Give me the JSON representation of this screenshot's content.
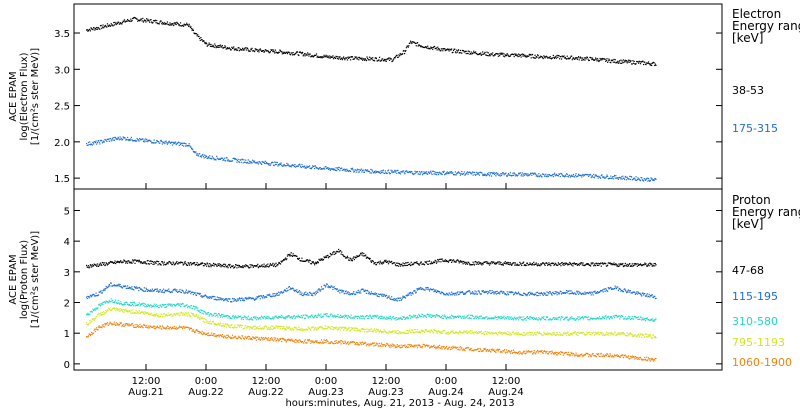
{
  "chart_data": [
    {
      "type": "scatter",
      "panel": "electron",
      "ylabel_lines": [
        "ACE EPAM",
        "log(Electron Flux)",
        "[1/(cm²s ster MeV)]"
      ],
      "ylim": [
        1.35,
        3.9
      ],
      "yticks": [
        1.5,
        2.0,
        2.5,
        3.0,
        3.5
      ],
      "legend_title_lines": [
        "Electron",
        "Energy ranges",
        "[keV]"
      ],
      "series": [
        {
          "name": "38-53",
          "color": "#000000",
          "points": [
            [
              0.0,
              3.55
            ],
            [
              0.1,
              3.58
            ],
            [
              0.2,
              3.62
            ],
            [
              0.3,
              3.66
            ],
            [
              0.4,
              3.7
            ],
            [
              0.5,
              3.68
            ],
            [
              0.6,
              3.66
            ],
            [
              0.7,
              3.64
            ],
            [
              0.85,
              3.62
            ],
            [
              0.9,
              3.5
            ],
            [
              1.0,
              3.35
            ],
            [
              1.2,
              3.3
            ],
            [
              1.4,
              3.27
            ],
            [
              1.6,
              3.25
            ],
            [
              1.8,
              3.22
            ],
            [
              2.0,
              3.18
            ],
            [
              2.2,
              3.16
            ],
            [
              2.4,
              3.15
            ],
            [
              2.55,
              3.14
            ],
            [
              2.65,
              3.25
            ],
            [
              2.7,
              3.38
            ],
            [
              2.8,
              3.33
            ],
            [
              3.0,
              3.27
            ],
            [
              3.2,
              3.24
            ],
            [
              3.4,
              3.21
            ],
            [
              3.6,
              3.2
            ],
            [
              3.8,
              3.18
            ],
            [
              4.0,
              3.17
            ],
            [
              4.2,
              3.15
            ],
            [
              4.4,
              3.12
            ],
            [
              4.6,
              3.1
            ],
            [
              4.75,
              3.08
            ]
          ]
        },
        {
          "name": "175-315",
          "color": "#1f6fd0",
          "points": [
            [
              0.0,
              1.98
            ],
            [
              0.1,
              2.0
            ],
            [
              0.2,
              2.04
            ],
            [
              0.3,
              2.06
            ],
            [
              0.4,
              2.04
            ],
            [
              0.5,
              2.02
            ],
            [
              0.6,
              2.01
            ],
            [
              0.7,
              1.99
            ],
            [
              0.85,
              1.97
            ],
            [
              0.9,
              1.85
            ],
            [
              1.0,
              1.8
            ],
            [
              1.2,
              1.76
            ],
            [
              1.4,
              1.73
            ],
            [
              1.6,
              1.7
            ],
            [
              1.8,
              1.67
            ],
            [
              2.0,
              1.64
            ],
            [
              2.2,
              1.62
            ],
            [
              2.4,
              1.6
            ],
            [
              2.6,
              1.59
            ],
            [
              2.8,
              1.58
            ],
            [
              3.0,
              1.58
            ],
            [
              3.2,
              1.57
            ],
            [
              3.4,
              1.56
            ],
            [
              3.6,
              1.56
            ],
            [
              3.8,
              1.55
            ],
            [
              4.0,
              1.55
            ],
            [
              4.2,
              1.54
            ],
            [
              4.4,
              1.52
            ],
            [
              4.6,
              1.5
            ],
            [
              4.75,
              1.48
            ]
          ]
        }
      ]
    },
    {
      "type": "scatter",
      "panel": "proton",
      "ylabel_lines": [
        "ACE EPAM",
        "log(Proton Flux)",
        "[1/(cm²s ster MeV)]"
      ],
      "ylim": [
        -0.2,
        5.7
      ],
      "yticks": [
        0,
        1,
        2,
        3,
        4,
        5
      ],
      "legend_title_lines": [
        "Proton",
        "Energy ranges",
        "[keV]"
      ],
      "series": [
        {
          "name": "47-68",
          "color": "#000000",
          "points": [
            [
              0.0,
              3.2
            ],
            [
              0.1,
              3.25
            ],
            [
              0.2,
              3.3
            ],
            [
              0.3,
              3.35
            ],
            [
              0.45,
              3.35
            ],
            [
              0.6,
              3.3
            ],
            [
              0.8,
              3.3
            ],
            [
              1.0,
              3.25
            ],
            [
              1.2,
              3.2
            ],
            [
              1.4,
              3.2
            ],
            [
              1.6,
              3.25
            ],
            [
              1.7,
              3.6
            ],
            [
              1.8,
              3.4
            ],
            [
              1.9,
              3.3
            ],
            [
              2.0,
              3.5
            ],
            [
              2.1,
              3.7
            ],
            [
              2.2,
              3.4
            ],
            [
              2.3,
              3.6
            ],
            [
              2.4,
              3.3
            ],
            [
              2.5,
              3.35
            ],
            [
              2.6,
              3.25
            ],
            [
              2.8,
              3.3
            ],
            [
              3.0,
              3.4
            ],
            [
              3.2,
              3.3
            ],
            [
              3.4,
              3.3
            ],
            [
              3.6,
              3.28
            ],
            [
              3.8,
              3.27
            ],
            [
              4.0,
              3.27
            ],
            [
              4.2,
              3.26
            ],
            [
              4.4,
              3.25
            ],
            [
              4.6,
              3.25
            ],
            [
              4.75,
              3.24
            ]
          ]
        },
        {
          "name": "115-195",
          "color": "#1a6ed4",
          "points": [
            [
              0.0,
              2.2
            ],
            [
              0.1,
              2.3
            ],
            [
              0.2,
              2.6
            ],
            [
              0.3,
              2.55
            ],
            [
              0.45,
              2.45
            ],
            [
              0.6,
              2.4
            ],
            [
              0.8,
              2.4
            ],
            [
              1.0,
              2.2
            ],
            [
              1.2,
              2.1
            ],
            [
              1.4,
              2.15
            ],
            [
              1.6,
              2.3
            ],
            [
              1.7,
              2.5
            ],
            [
              1.8,
              2.3
            ],
            [
              1.9,
              2.3
            ],
            [
              2.0,
              2.6
            ],
            [
              2.1,
              2.4
            ],
            [
              2.2,
              2.3
            ],
            [
              2.3,
              2.4
            ],
            [
              2.5,
              2.2
            ],
            [
              2.6,
              2.1
            ],
            [
              2.8,
              2.5
            ],
            [
              3.0,
              2.3
            ],
            [
              3.2,
              2.35
            ],
            [
              3.4,
              2.35
            ],
            [
              3.6,
              2.3
            ],
            [
              3.8,
              2.3
            ],
            [
              4.0,
              2.35
            ],
            [
              4.2,
              2.3
            ],
            [
              4.4,
              2.5
            ],
            [
              4.6,
              2.3
            ],
            [
              4.75,
              2.2
            ]
          ]
        },
        {
          "name": "310-580",
          "color": "#22d6c8",
          "points": [
            [
              0.0,
              1.6
            ],
            [
              0.1,
              1.9
            ],
            [
              0.2,
              2.1
            ],
            [
              0.3,
              2.0
            ],
            [
              0.45,
              1.95
            ],
            [
              0.6,
              1.9
            ],
            [
              0.8,
              1.95
            ],
            [
              0.9,
              1.85
            ],
            [
              1.0,
              1.65
            ],
            [
              1.2,
              1.55
            ],
            [
              1.4,
              1.5
            ],
            [
              1.6,
              1.55
            ],
            [
              1.8,
              1.55
            ],
            [
              2.0,
              1.6
            ],
            [
              2.2,
              1.55
            ],
            [
              2.4,
              1.55
            ],
            [
              2.6,
              1.5
            ],
            [
              2.8,
              1.6
            ],
            [
              3.0,
              1.55
            ],
            [
              3.2,
              1.55
            ],
            [
              3.4,
              1.52
            ],
            [
              3.6,
              1.5
            ],
            [
              3.8,
              1.5
            ],
            [
              4.0,
              1.5
            ],
            [
              4.2,
              1.5
            ],
            [
              4.4,
              1.55
            ],
            [
              4.6,
              1.5
            ],
            [
              4.75,
              1.45
            ]
          ]
        },
        {
          "name": "795-1193",
          "color": "#d2e61e",
          "points": [
            [
              0.0,
              1.3
            ],
            [
              0.1,
              1.6
            ],
            [
              0.2,
              1.8
            ],
            [
              0.3,
              1.75
            ],
            [
              0.45,
              1.7
            ],
            [
              0.6,
              1.6
            ],
            [
              0.8,
              1.65
            ],
            [
              0.9,
              1.6
            ],
            [
              1.0,
              1.4
            ],
            [
              1.2,
              1.25
            ],
            [
              1.4,
              1.2
            ],
            [
              1.6,
              1.2
            ],
            [
              1.8,
              1.15
            ],
            [
              2.0,
              1.2
            ],
            [
              2.2,
              1.15
            ],
            [
              2.4,
              1.1
            ],
            [
              2.6,
              1.05
            ],
            [
              2.8,
              1.1
            ],
            [
              3.0,
              1.05
            ],
            [
              3.2,
              1.05
            ],
            [
              3.4,
              1.02
            ],
            [
              3.6,
              1.0
            ],
            [
              3.8,
              1.0
            ],
            [
              4.0,
              1.0
            ],
            [
              4.2,
              1.0
            ],
            [
              4.4,
              1.0
            ],
            [
              4.6,
              0.95
            ],
            [
              4.75,
              0.9
            ]
          ]
        },
        {
          "name": "1060-1900",
          "color": "#f0820a",
          "points": [
            [
              0.0,
              0.9
            ],
            [
              0.1,
              1.2
            ],
            [
              0.2,
              1.35
            ],
            [
              0.3,
              1.3
            ],
            [
              0.45,
              1.25
            ],
            [
              0.6,
              1.2
            ],
            [
              0.8,
              1.2
            ],
            [
              1.0,
              1.0
            ],
            [
              1.2,
              0.9
            ],
            [
              1.4,
              0.85
            ],
            [
              1.6,
              0.8
            ],
            [
              1.8,
              0.75
            ],
            [
              2.0,
              0.75
            ],
            [
              2.2,
              0.7
            ],
            [
              2.4,
              0.65
            ],
            [
              2.6,
              0.6
            ],
            [
              2.8,
              0.6
            ],
            [
              3.0,
              0.55
            ],
            [
              3.2,
              0.5
            ],
            [
              3.4,
              0.45
            ],
            [
              3.6,
              0.4
            ],
            [
              3.8,
              0.4
            ],
            [
              4.0,
              0.35
            ],
            [
              4.2,
              0.3
            ],
            [
              4.4,
              0.3
            ],
            [
              4.6,
              0.2
            ],
            [
              4.75,
              0.15
            ]
          ]
        }
      ]
    }
  ],
  "x_axis": {
    "xlim": [
      -0.1,
      5.3
    ],
    "ticks": [
      {
        "value": 0.5,
        "time": "12:00",
        "date": "Aug.21"
      },
      {
        "value": 1.0,
        "time": "0:00",
        "date": "Aug.22"
      },
      {
        "value": 1.5,
        "time": "12:00",
        "date": "Aug.22"
      },
      {
        "value": 2.0,
        "time": "0:00",
        "date": "Aug.23"
      },
      {
        "value": 2.5,
        "time": "12:00",
        "date": "Aug.23"
      },
      {
        "value": 3.0,
        "time": "0:00",
        "date": "Aug.24"
      },
      {
        "value": 3.5,
        "time": "12:00",
        "date": "Aug.24"
      }
    ],
    "label": "hours:minutes, Aug. 21, 2013 - Aug. 24, 2013"
  }
}
